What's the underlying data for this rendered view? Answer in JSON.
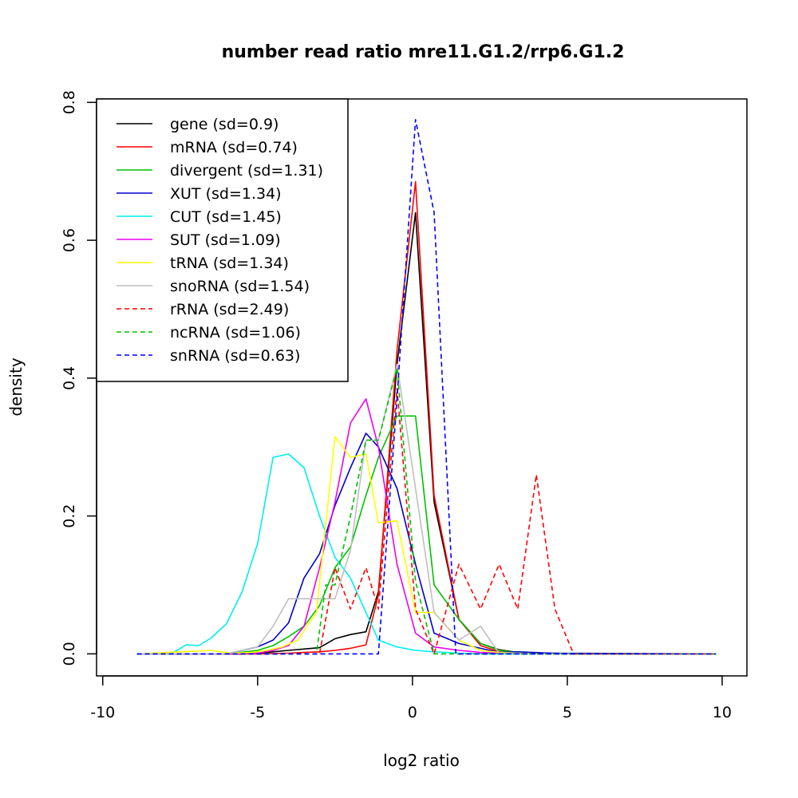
{
  "chart_data": {
    "type": "line",
    "title": "number read ratio mre11.G1.2/rrp6.G1.2",
    "xlabel": "log2 ratio",
    "ylabel": "density",
    "xlim": [
      -10.2,
      10.8
    ],
    "ylim": [
      -0.032,
      0.805
    ],
    "x_ticks": [
      -10,
      -5,
      0,
      5,
      10
    ],
    "x_tick_labels": [
      "-10",
      "-5",
      "0",
      "5",
      "10"
    ],
    "y_ticks": [
      0.0,
      0.2,
      0.4,
      0.6,
      0.8
    ],
    "y_tick_labels": [
      "0.0",
      "0.2",
      "0.4",
      "0.6",
      "0.8"
    ],
    "legend_position": "top-left",
    "series": [
      {
        "name": "gene (sd=0.9)",
        "color": "#000000",
        "dash": "solid",
        "x": [
          -8.9,
          -7.5,
          -6.5,
          -5.5,
          -5,
          -4.5,
          -4,
          -3.5,
          -3,
          -2.5,
          -2,
          -1.5,
          -1.1,
          -0.5,
          0.1,
          0.7,
          1.5,
          2.2,
          2.8,
          3.4,
          4.5,
          6,
          8,
          9.8
        ],
        "y": [
          0,
          0,
          0,
          0,
          0.001,
          0.003,
          0.005,
          0.007,
          0.009,
          0.022,
          0.028,
          0.032,
          0.09,
          0.42,
          0.64,
          0.22,
          0.05,
          0.015,
          0.006,
          0.002,
          0.001,
          0,
          0,
          0
        ]
      },
      {
        "name": "mRNA (sd=0.74)",
        "color": "#ff0000",
        "dash": "solid",
        "x": [
          -8.9,
          -7,
          -6,
          -5,
          -4,
          -3.5,
          -3,
          -2.5,
          -2,
          -1.5,
          -1.1,
          -0.5,
          0.1,
          0.7,
          1.5,
          2.2,
          2.8,
          3.4,
          5,
          9.8
        ],
        "y": [
          0,
          0,
          0,
          0,
          0.001,
          0.002,
          0.003,
          0.005,
          0.008,
          0.013,
          0.085,
          0.44,
          0.685,
          0.23,
          0.05,
          0.012,
          0.003,
          0.001,
          0,
          0
        ]
      },
      {
        "name": "divergent (sd=1.31)",
        "color": "#00c000",
        "dash": "solid",
        "x": [
          -8.9,
          -6,
          -5,
          -4.5,
          -4,
          -3.5,
          -3,
          -2.5,
          -2,
          -1.5,
          -1.1,
          -0.5,
          0.1,
          0.7,
          1.5,
          2.2,
          2.8,
          3.4,
          5,
          9.8
        ],
        "y": [
          0,
          0,
          0.005,
          0.012,
          0.025,
          0.04,
          0.07,
          0.125,
          0.155,
          0.23,
          0.285,
          0.345,
          0.345,
          0.1,
          0.05,
          0.015,
          0.005,
          0.002,
          0,
          0
        ]
      },
      {
        "name": "XUT (sd=1.34)",
        "color": "#0000cc",
        "dash": "solid",
        "x": [
          -8.9,
          -6,
          -5,
          -4.5,
          -4,
          -3.5,
          -3,
          -2.5,
          -2,
          -1.5,
          -1.1,
          -0.5,
          0.1,
          0.7,
          1.5,
          2.2,
          2.8,
          3.4,
          4.5,
          9.8
        ],
        "y": [
          0,
          0,
          0.01,
          0.02,
          0.045,
          0.11,
          0.145,
          0.215,
          0.27,
          0.32,
          0.3,
          0.24,
          0.13,
          0.03,
          0.015,
          0.008,
          0.002,
          0.003,
          0.001,
          0
        ]
      },
      {
        "name": "CUT (sd=1.45)",
        "color": "#00eeee",
        "dash": "solid",
        "x": [
          -8.9,
          -7.8,
          -7.3,
          -6.9,
          -6.5,
          -6,
          -5.5,
          -5,
          -4.5,
          -4,
          -3.5,
          -3,
          -2.5,
          -2,
          -1.5,
          -1.1,
          -0.5,
          0.1,
          0.7,
          1.5,
          2.2,
          2.8,
          4,
          9.8
        ],
        "y": [
          0,
          0,
          0.013,
          0.012,
          0.023,
          0.044,
          0.09,
          0.16,
          0.285,
          0.29,
          0.27,
          0.2,
          0.14,
          0.11,
          0.06,
          0.02,
          0.01,
          0.005,
          0.003,
          0.001,
          0,
          0,
          0,
          0
        ]
      },
      {
        "name": "SUT (sd=1.09)",
        "color": "#ee00ee",
        "dash": "solid",
        "x": [
          -8.9,
          -6,
          -5,
          -4.5,
          -4,
          -3.5,
          -3,
          -2.5,
          -2,
          -1.5,
          -1.1,
          -0.5,
          0.1,
          0.7,
          1.5,
          2.2,
          2.8,
          4,
          9.8
        ],
        "y": [
          0,
          0,
          0.001,
          0.005,
          0.012,
          0.04,
          0.125,
          0.22,
          0.335,
          0.37,
          0.3,
          0.13,
          0.03,
          0.01,
          0.005,
          0.002,
          0.001,
          0,
          0
        ]
      },
      {
        "name": "tRNA (sd=1.34)",
        "color": "#ffff00",
        "dash": "solid",
        "x": [
          -8.9,
          -6.5,
          -6.2,
          -5.8,
          -5.2,
          -4.7,
          -4.2,
          -3.7,
          -3.1,
          -2.5,
          -2,
          -1.5,
          -1.1,
          -0.5,
          0.1,
          0.7,
          1.5,
          2.2,
          2.8,
          4,
          9.8
        ],
        "y": [
          0,
          0.005,
          0.003,
          0.001,
          0.002,
          0.005,
          0.01,
          0.02,
          0.06,
          0.315,
          0.285,
          0.29,
          0.19,
          0.193,
          0.06,
          0.06,
          0.02,
          0.005,
          0.002,
          0,
          0
        ]
      },
      {
        "name": "snoRNA (sd=1.54)",
        "color": "#bebebe",
        "dash": "solid",
        "x": [
          -8.9,
          -6,
          -5,
          -4.5,
          -4,
          -3.5,
          -3,
          -2.5,
          -2,
          -1.5,
          -1.1,
          -0.5,
          0.1,
          0.7,
          1.5,
          2.2,
          2.8,
          3.4,
          4,
          9.8
        ],
        "y": [
          0,
          0,
          0.01,
          0.04,
          0.08,
          0.08,
          0.08,
          0.08,
          0.15,
          0.31,
          0.31,
          0.42,
          0.24,
          0.06,
          0.02,
          0.04,
          0.001,
          0.001,
          0,
          0
        ]
      },
      {
        "name": "rRNA (sd=2.49)",
        "color": "#ff0000",
        "dash": "dashed",
        "x": [
          -8.9,
          -4,
          -3.5,
          -3,
          -2.5,
          -2,
          -1.5,
          -1.1,
          -0.5,
          0.1,
          0.7,
          1.5,
          2.2,
          2.8,
          3.4,
          4,
          4.6,
          5.2,
          5.8,
          6.5,
          8,
          9.8
        ],
        "y": [
          0,
          0,
          0,
          0,
          0.125,
          0.065,
          0.125,
          0.065,
          0.385,
          0.065,
          0,
          0.13,
          0.065,
          0.13,
          0.065,
          0.26,
          0.065,
          0,
          0,
          0,
          0,
          0
        ]
      },
      {
        "name": "ncRNA (sd=1.06)",
        "color": "#00c000",
        "dash": "dashed",
        "x": [
          -8.9,
          -3.5,
          -3.1,
          -2.8,
          -2.5,
          -2,
          -1.5,
          -1.1,
          -0.5,
          0.1,
          0.7,
          1.5,
          2.2,
          3,
          5,
          9.8
        ],
        "y": [
          0,
          0,
          0,
          0.1,
          0.1,
          0.2,
          0.31,
          0.31,
          0.415,
          0.105,
          0,
          0,
          0,
          0,
          0,
          0
        ]
      },
      {
        "name": "snRNA (sd=0.63)",
        "color": "#0000ff",
        "dash": "dashed",
        "x": [
          -8.9,
          -5,
          -3,
          -1.8,
          -1.1,
          -0.5,
          0.1,
          0.7,
          1.4,
          2,
          3,
          5,
          9.8
        ],
        "y": [
          0,
          0,
          0,
          0,
          0,
          0.37,
          0.775,
          0.64,
          0,
          0,
          0,
          0,
          0
        ]
      }
    ]
  }
}
